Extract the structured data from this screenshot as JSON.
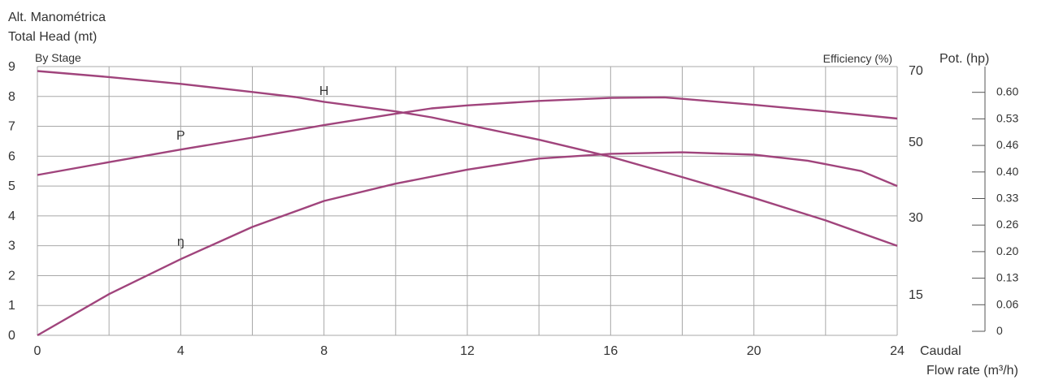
{
  "chart_data": {
    "type": "line",
    "ytitle_line1": "Alt. Manométrica",
    "ytitle_line2": "Total Head (mt)",
    "by_stage_label": "By Stage",
    "efficiency_label": "Efficiency (%)",
    "power_label": "Pot. (hp)",
    "xlabel_line1": "Caudal",
    "xlabel_line2": "Flow rate (m³/h)",
    "x_ticks": [
      "0",
      "4",
      "8",
      "12",
      "16",
      "20",
      "24"
    ],
    "y_ticks": [
      "0",
      "1",
      "2",
      "3",
      "4",
      "5",
      "6",
      "7",
      "8",
      "9"
    ],
    "eff_ticks": [
      "15",
      "30",
      "50",
      "70"
    ],
    "power_ticks": [
      "0",
      "0.06",
      "0.13",
      "0.20",
      "0.26",
      "0.33",
      "0.40",
      "0.46",
      "0.53",
      "0.60"
    ],
    "xlim": [
      0,
      24
    ],
    "ylim": [
      0,
      9
    ],
    "grid": true,
    "line_color": "#a0447c",
    "series": [
      {
        "name": "H",
        "x": [
          0,
          2,
          4,
          6,
          7.2,
          8,
          10,
          11,
          12,
          14,
          16,
          18,
          20,
          22,
          24
        ],
        "y": [
          8.85,
          8.65,
          8.42,
          8.15,
          7.98,
          7.82,
          7.5,
          7.3,
          7.05,
          6.55,
          5.98,
          5.3,
          4.6,
          3.85,
          3.0
        ]
      },
      {
        "name": "P",
        "x": [
          0,
          2,
          4,
          6,
          8,
          10,
          11,
          12,
          14,
          16,
          17.5,
          18,
          20,
          22,
          24
        ],
        "y": [
          5.37,
          5.8,
          6.22,
          6.62,
          7.04,
          7.42,
          7.6,
          7.7,
          7.85,
          7.95,
          7.97,
          7.92,
          7.72,
          7.5,
          7.26
        ]
      },
      {
        "name": "ŋ",
        "x": [
          0,
          2,
          4,
          6,
          8,
          10,
          12,
          14,
          16,
          18,
          20,
          21.5,
          23,
          24
        ],
        "y": [
          0.0,
          1.38,
          2.55,
          3.63,
          4.5,
          5.08,
          5.55,
          5.92,
          6.08,
          6.13,
          6.05,
          5.85,
          5.5,
          5.0
        ]
      }
    ]
  }
}
